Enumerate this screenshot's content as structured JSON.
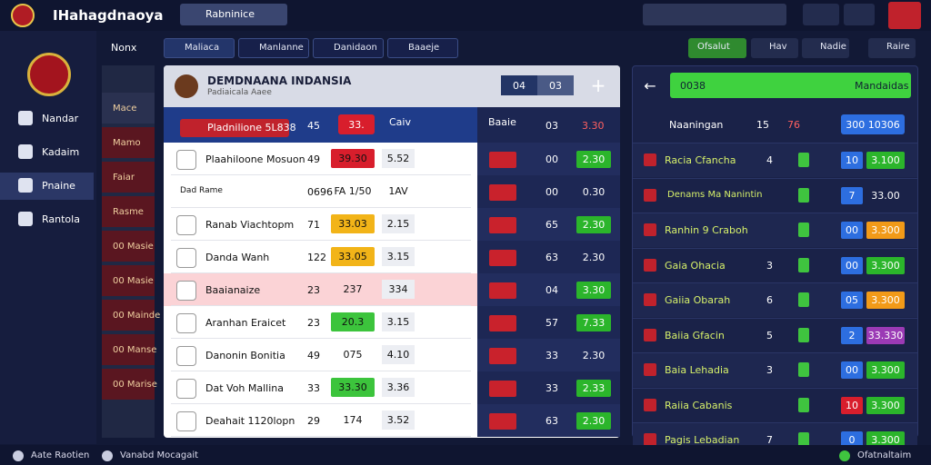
{
  "header": {
    "app_name": "IHahagdnaoya",
    "search": "Rabninice"
  },
  "sidebar": {
    "menu": "Nonx",
    "items": [
      "Nandar",
      "Kadaim",
      "Pnaine",
      "Rantola"
    ],
    "active": 2
  },
  "subnav": [
    "Mace",
    "Mamo",
    "Faiar",
    "Rasme",
    "00 Masie",
    "00 Masie",
    "00 Mainde",
    "00 Manse",
    "00 Marise"
  ],
  "tabs": [
    "Maliaca",
    "Manlanne",
    "Danidaon",
    "Baaeje"
  ],
  "toolbar": [
    "Ofsalut",
    "Hav",
    "Nadie",
    "Raire"
  ],
  "main": {
    "title": "DEMDNAANA INDANSIA",
    "subtitle": "Padiaicala Aaee",
    "buttons": [
      "04",
      "03"
    ],
    "head": {
      "team": "Pladnilione 5L838",
      "a": "45",
      "b": "33.",
      "c": "Caiv",
      "d": "Baaie",
      "e": "03",
      "f": "3.30"
    },
    "rows": [
      {
        "team": "Plaahiloone Mosuon",
        "a": "49",
        "b": "39.30",
        "b_color": "#d81e2c",
        "c": "5.52",
        "d": "00",
        "e": "2.30",
        "e_color": "#2bb52b"
      },
      {
        "team": "Dad Rame",
        "a": "0696",
        "b": "FA 1/50",
        "c": "1AV",
        "d": "00",
        "e": "0.30",
        "sub": true
      },
      {
        "team": "Ranab Viachtopm",
        "a": "71",
        "b": "33.03",
        "b_color": "#f2b418",
        "c": "2.15",
        "d": "65",
        "e": "2.30",
        "e_color": "#2bb52b"
      },
      {
        "team": "Danda Wanh",
        "a": "122",
        "b": "33.05",
        "b_color": "#f2b418",
        "c": "3.15",
        "d": "63",
        "e": "2.30"
      },
      {
        "team": "Baaianaize",
        "a": "23",
        "b": "237",
        "c": "334",
        "d": "04",
        "e": "3.30",
        "e_color": "#2bb52b",
        "pink": true
      },
      {
        "team": "Aranhan Eraicet",
        "a": "23",
        "b": "20.3",
        "b_color": "#3cc43c",
        "c": "3.15",
        "d": "57",
        "e": "7.33",
        "e_color": "#2bb52b"
      },
      {
        "team": "Danonin Bonitia",
        "a": "49",
        "b": "075",
        "c": "4.10",
        "d": "33",
        "e": "2.30"
      },
      {
        "team": "Dat Voh Mallina",
        "a": "33",
        "b": "33.30",
        "b_color": "#3cc43c",
        "c": "3.36",
        "d": "33",
        "e": "2.33",
        "e_color": "#2bb52b"
      },
      {
        "team": "Deahait 1120lopn",
        "a": "29",
        "b": "174",
        "c": "3.52",
        "d": "63",
        "e": "2.30",
        "e_color": "#2bb52b"
      }
    ]
  },
  "side": {
    "button": "0038",
    "label": "Mandaidas",
    "head": {
      "team": "Naaningan",
      "a": "15",
      "b": "76",
      "c": "300 10306"
    },
    "rows": [
      {
        "team": "Racia Cfancha",
        "a": "4",
        "b": "10",
        "c": "3.100",
        "c_color": "#2bb52b"
      },
      {
        "team": "Denams Ma Nanintin",
        "a": "",
        "b": "7",
        "c": "33.00",
        "sub": true
      },
      {
        "team": "Ranhin 9 Craboh",
        "a": "",
        "b": "00",
        "c": "3.300",
        "c_color": "#f29a18"
      },
      {
        "team": "Gaia Ohacia",
        "a": "3",
        "b": "00",
        "c": "3.300",
        "c_color": "#2bb52b"
      },
      {
        "team": "Gaiia Obarah",
        "a": "6",
        "b": "05",
        "c": "3.300",
        "c_color": "#f29a18"
      },
      {
        "team": "Baiia Gfacin",
        "a": "5",
        "b": "2",
        "c": "33.330",
        "c_color": "#9b3ab5"
      },
      {
        "team": "Baia Lehadia",
        "a": "3",
        "b": "00",
        "c": "3.300",
        "c_color": "#2bb52b"
      },
      {
        "team": "Raiia Cabanis",
        "a": "",
        "b": "10",
        "c": "3.300",
        "c_color": "#2bb52b",
        "b_color": "#d81e2c"
      },
      {
        "team": "Pagis Lebadian",
        "a": "7",
        "b": "0",
        "c": "3.300",
        "c_color": "#2bb52b"
      }
    ]
  },
  "footer": [
    "Aate Raotien",
    "Vanabd Mocagait",
    "Ofatnaltaim"
  ]
}
